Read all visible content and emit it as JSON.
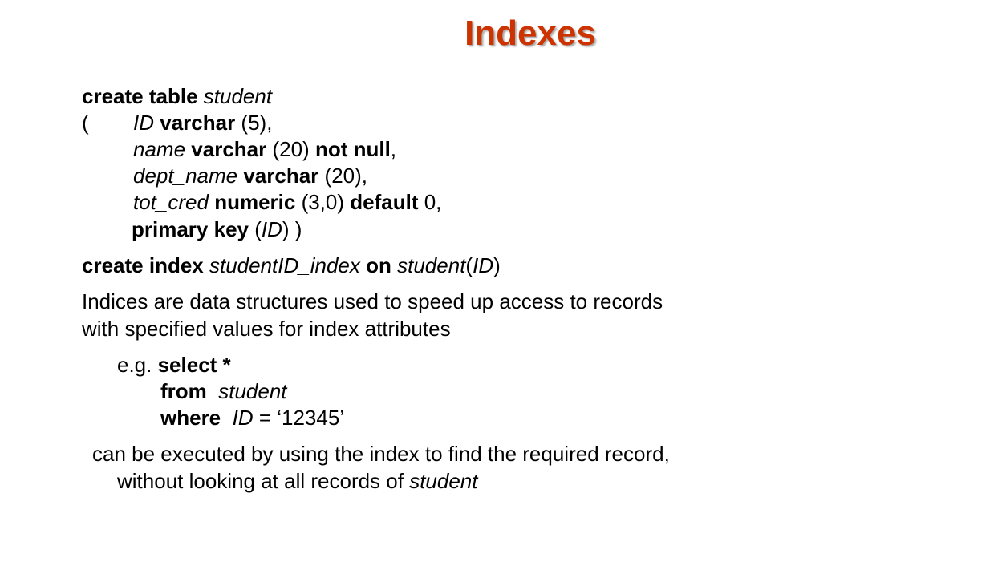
{
  "title": "Indexes",
  "ddl": {
    "l1": {
      "kw": "create table",
      "name": "student"
    },
    "l2": {
      "paren": "(",
      "col": "ID",
      "kw": "varchar",
      "rest": " (5),"
    },
    "l3": {
      "col": "name",
      "kw1": "varchar",
      "mid": " (20) ",
      "kw2": "not null",
      "end": ","
    },
    "l4": {
      "col": "dept_name",
      "kw": "varchar",
      "rest": " (20),"
    },
    "l5": {
      "col": "tot_cred",
      "kw1": "numeric",
      "mid": " (3,0) ",
      "kw2": "default",
      "end": " 0,"
    },
    "l6": {
      "kw": "primary key",
      "open": " (",
      "col": "ID",
      "close": ") )"
    }
  },
  "create_index": {
    "kw": "create index",
    "idx": "studentID_index",
    "on": "on",
    "tbl": "student",
    "open": "(",
    "col": "ID",
    "close": ")"
  },
  "description": {
    "line1": "Indices are data structures used to speed up access to records",
    "line2": "with specified values for index attributes"
  },
  "example": {
    "eg": "e.g. ",
    "select": "select *",
    "from": "from",
    "from_tbl": "student",
    "where": "where",
    "where_col": "ID",
    "where_rest": " = ‘12345’"
  },
  "conclusion": {
    "line1": "can be executed by using the index to find the required record,",
    "line2_text": "without looking at all records of ",
    "line2_tbl": "student"
  }
}
